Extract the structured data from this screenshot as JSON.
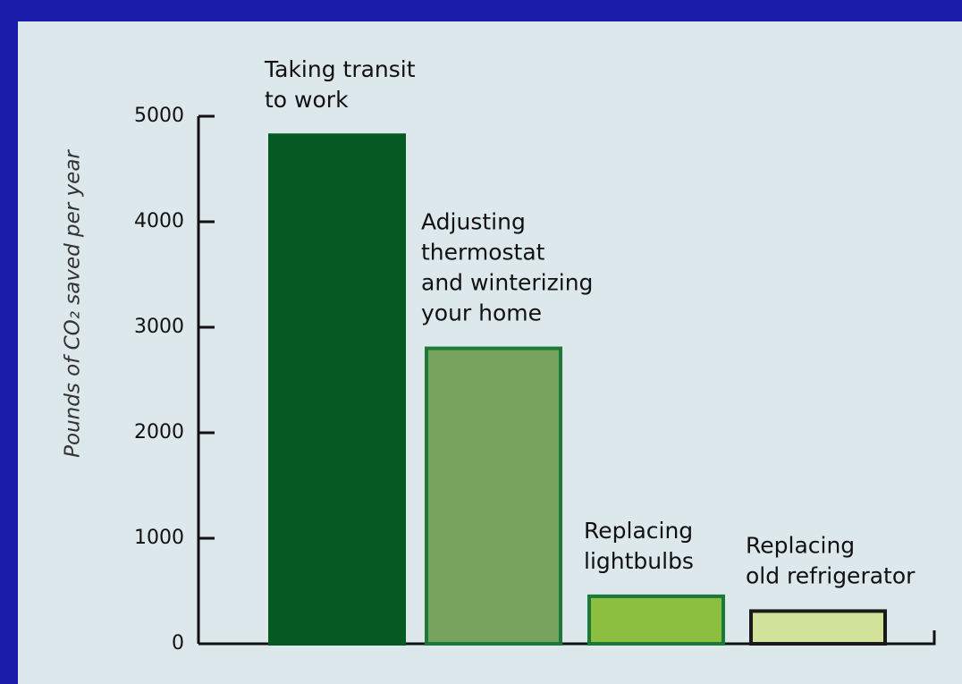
{
  "chart_data": {
    "type": "bar",
    "ylabel": "Pounds of CO₂ saved per year",
    "categories": [
      [
        "Taking transit",
        "to work"
      ],
      [
        "Adjusting",
        "thermostat",
        "and winterizing",
        "your home"
      ],
      [
        "Replacing",
        "lightbulbs"
      ],
      [
        "Replacing",
        "old refrigerator"
      ]
    ],
    "values": [
      4820,
      2800,
      450,
      310
    ],
    "colors": [
      "#045a22",
      "#78a35f",
      "#8cbf3f",
      "#d1e29a"
    ],
    "edge_colors": [
      "#045a22",
      "#1b7a3a",
      "#1b7a3a",
      "#1a1a1a"
    ],
    "ylim": [
      0,
      5000
    ],
    "yticks": [
      0,
      1000,
      2000,
      3000,
      4000,
      5000
    ],
    "grid": false
  }
}
